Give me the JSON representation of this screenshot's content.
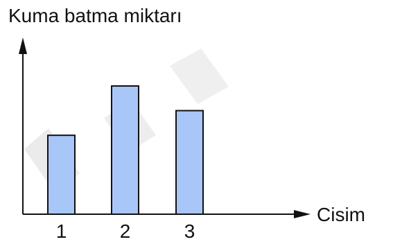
{
  "chart_data": {
    "type": "bar",
    "title": "",
    "ylabel": "Kuma batma miktarı",
    "xlabel": "Cisim",
    "categories": [
      "1",
      "2",
      "3"
    ],
    "values": [
      3.2,
      5.2,
      4.2
    ],
    "ylim": [
      0,
      7
    ],
    "grid": false,
    "legend": "none",
    "bar_color": "#a9c6f8",
    "bar_stroke": "#111111",
    "axis_color": "#111111"
  }
}
